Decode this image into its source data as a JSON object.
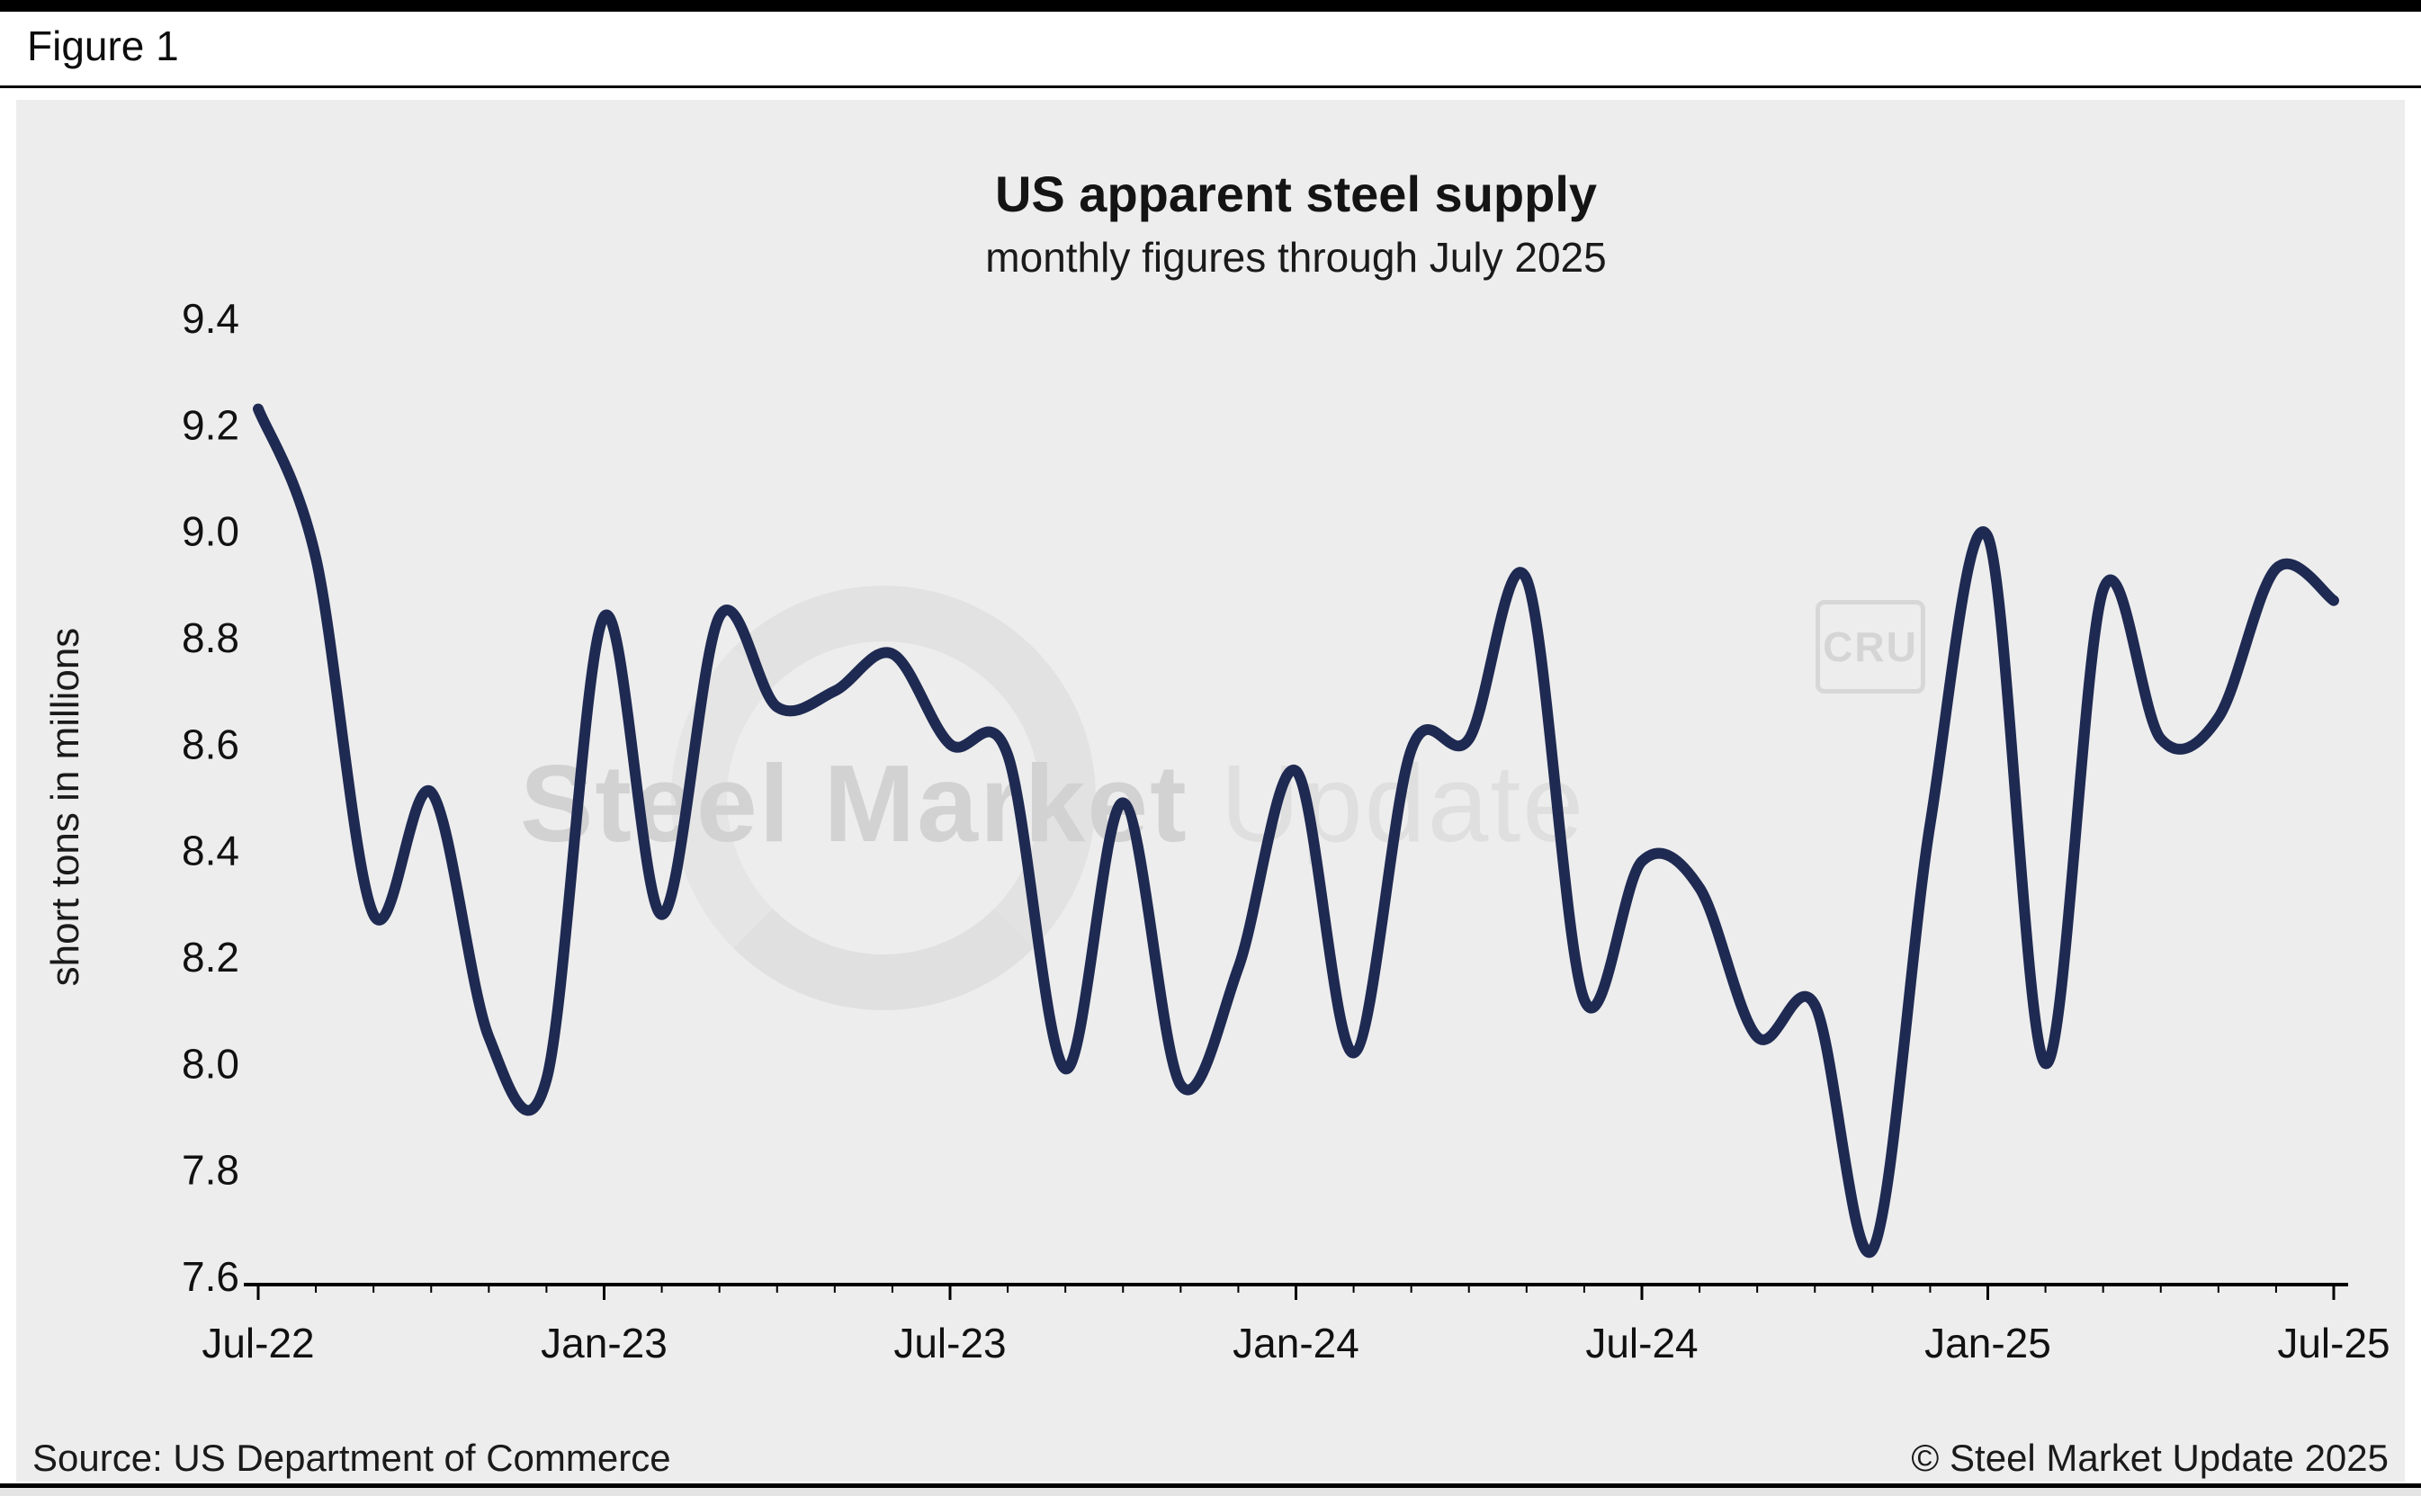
{
  "figure_label": "Figure 1",
  "title": "US apparent steel supply",
  "subtitle": "monthly figures through July 2025",
  "footer": {
    "source": "Source: US Department of Commerce",
    "copyright": "© Steel Market Update 2025"
  },
  "watermark": {
    "text_bold": "Steel Market",
    "text_light": " Update",
    "badge": "CRU"
  },
  "colors": {
    "line": "#1f2a52",
    "panel_bg": "#ededed",
    "axis": "#000000",
    "text": "#111111"
  },
  "chart_data": {
    "type": "line",
    "title": "US apparent steel supply",
    "subtitle": "monthly figures through July 2025",
    "xlabel": "",
    "ylabel": "short tons in millions",
    "ylim": [
      7.6,
      9.4
    ],
    "ytick_step": 0.2,
    "yticks": [
      9.4,
      9.2,
      9.0,
      8.8,
      8.6,
      8.4,
      8.2,
      8.0,
      7.8,
      7.6
    ],
    "xtick_labels": [
      "Jul-22",
      "Jan-23",
      "Jul-23",
      "Jan-24",
      "Jul-24",
      "Jan-25",
      "Jul-25"
    ],
    "grid": false,
    "legend": "none",
    "smooth": true,
    "x": [
      "Jul-22",
      "Aug-22",
      "Sep-22",
      "Oct-22",
      "Nov-22",
      "Dec-22",
      "Jan-23",
      "Feb-23",
      "Mar-23",
      "Apr-23",
      "May-23",
      "Jun-23",
      "Jul-23",
      "Aug-23",
      "Sep-23",
      "Oct-23",
      "Nov-23",
      "Dec-23",
      "Jan-24",
      "Feb-24",
      "Mar-24",
      "Apr-24",
      "May-24",
      "Jun-24",
      "Jul-24",
      "Aug-24",
      "Sep-24",
      "Oct-24",
      "Nov-24",
      "Dec-24",
      "Jan-25",
      "Feb-25",
      "Mar-25",
      "Apr-25",
      "May-25",
      "Jun-25",
      "Jul-25"
    ],
    "values": [
      9.23,
      8.95,
      8.28,
      8.51,
      8.05,
      7.97,
      8.84,
      8.28,
      8.84,
      8.67,
      8.7,
      8.77,
      8.6,
      8.58,
      7.99,
      8.49,
      7.96,
      8.18,
      8.55,
      8.02,
      8.59,
      8.61,
      8.91,
      8.12,
      8.38,
      8.33,
      8.05,
      8.11,
      7.65,
      8.45,
      8.99,
      8.0,
      8.89,
      8.61,
      8.65,
      8.93,
      8.87
    ]
  }
}
